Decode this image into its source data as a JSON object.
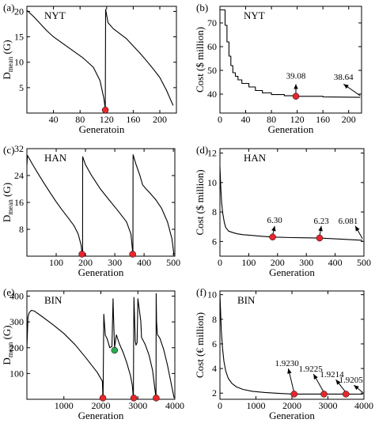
{
  "colors": {
    "marker_red": "#e8262c",
    "marker_green": "#2fa84f",
    "line": "#000000",
    "background": "#ffffff"
  },
  "chart_data": [
    {
      "id": "a",
      "panel_label": "(a)",
      "tag": "NYT",
      "type": "line",
      "xlabel": "Generatoin",
      "ylabel_main": "D",
      "ylabel_sub": "mean",
      "ylabel_unit": " (G)",
      "xlim": [
        0,
        225
      ],
      "ylim": [
        0,
        21
      ],
      "xticks": [
        40,
        80,
        120,
        160,
        200
      ],
      "yticks": [
        0,
        5,
        10,
        15,
        20
      ],
      "ytick_labels_shown": [
        5,
        10,
        15,
        20
      ],
      "series": [
        {
          "x": [
            0,
            10,
            20,
            30,
            40,
            55,
            70,
            85,
            100,
            110,
            116,
            118,
            118.5,
            122,
            130,
            140,
            150,
            160,
            170,
            180,
            190,
            200,
            210,
            220
          ],
          "y": [
            20.2,
            19,
            17.6,
            16.2,
            15,
            13.6,
            12.2,
            10.8,
            9.0,
            6.4,
            2.8,
            0.8,
            20.4,
            17.8,
            16.6,
            15.6,
            14.6,
            13.2,
            11.8,
            10.3,
            8.7,
            7,
            4.5,
            1.5
          ]
        }
      ],
      "markers": [
        {
          "x": 118,
          "y": 0.6,
          "color": "red"
        }
      ],
      "annotations": []
    },
    {
      "id": "b",
      "panel_label": "(b)",
      "tag": "NYT",
      "type": "line",
      "xlabel": "Generation",
      "ylabel": "Cost ($ million)",
      "xlim": [
        0,
        220
      ],
      "ylim": [
        32,
        77
      ],
      "xticks": [
        0,
        40,
        80,
        120,
        160,
        200
      ],
      "yticks": [
        40,
        50,
        60,
        70
      ],
      "series": [
        {
          "x": [
            0,
            8,
            8,
            11,
            11,
            14,
            14,
            17,
            17,
            20,
            20,
            24,
            24,
            28,
            28,
            34,
            34,
            45,
            45,
            55,
            55,
            66,
            66,
            80,
            80,
            100,
            100,
            118,
            118,
            160,
            160,
            218
          ],
          "y": [
            75.5,
            75.5,
            69,
            69,
            62,
            62,
            56,
            56,
            52,
            52,
            49,
            49,
            47.5,
            47.5,
            46,
            46,
            44.5,
            44.5,
            43,
            43,
            41.5,
            41.5,
            40.5,
            40.5,
            39.8,
            39.8,
            39.3,
            39.3,
            39.08,
            39.08,
            38.8,
            38.64
          ]
        }
      ],
      "markers": [
        {
          "x": 118,
          "y": 39.08,
          "color": "red"
        }
      ],
      "annotations": [
        {
          "text": "39.08",
          "x": 118,
          "y": 39.08,
          "tx": 118,
          "ty": 46.5,
          "ax": 118,
          "ay": 44.2
        },
        {
          "text": "38.64",
          "x": 218,
          "y": 38.64,
          "tx": 192,
          "ty": 46,
          "ax": 192,
          "ay": 44.2
        }
      ]
    },
    {
      "id": "c",
      "panel_label": "(c)",
      "tag": "HAN",
      "type": "line",
      "xlabel": "Generation",
      "ylabel_main": "D",
      "ylabel_sub": "mean",
      "ylabel_unit": " (G)",
      "xlim": [
        0,
        505
      ],
      "ylim": [
        0,
        32
      ],
      "xticks": [
        100,
        200,
        300,
        400,
        500
      ],
      "yticks": [
        8,
        16,
        24,
        32
      ],
      "series": [
        {
          "x": [
            0,
            2,
            20,
            40,
            60,
            80,
            100,
            120,
            140,
            160,
            175,
            185,
            188,
            190,
            190.5,
            200,
            220,
            250,
            280,
            310,
            340,
            355,
            360,
            362,
            362.5,
            372,
            385,
            395,
            405,
            420,
            440,
            460,
            480,
            495,
            502
          ],
          "y": [
            27,
            30,
            27.2,
            24.3,
            21.5,
            18.8,
            16.2,
            13.8,
            11.5,
            9.2,
            6.6,
            3.3,
            1.2,
            0.5,
            29.6,
            27.2,
            24.1,
            20.1,
            16.8,
            13.6,
            10.2,
            6.6,
            2.2,
            0.6,
            30.2,
            27.4,
            24.2,
            21.2,
            20.2,
            18.8,
            16.8,
            14.2,
            10.2,
            5.2,
            0.4
          ]
        }
      ],
      "markers": [
        {
          "x": 188,
          "y": 0.6,
          "color": "red"
        },
        {
          "x": 361,
          "y": 0.6,
          "color": "red"
        }
      ],
      "annotations": []
    },
    {
      "id": "d",
      "panel_label": "(d)",
      "tag": "HAN",
      "type": "line",
      "xlabel": "Generation",
      "ylabel": "Cost ($ million)",
      "xlim": [
        0,
        500
      ],
      "ylim": [
        5.0,
        12.3
      ],
      "xticks": [
        0,
        100,
        200,
        300,
        400,
        500
      ],
      "yticks": [
        6,
        8,
        10,
        12
      ],
      "series": [
        {
          "x": [
            0,
            3,
            6,
            10,
            15,
            20,
            30,
            45,
            60,
            80,
            110,
            140,
            183,
            250,
            346,
            420,
            495
          ],
          "y": [
            11.1,
            9.6,
            8.6,
            7.9,
            7.3,
            6.95,
            6.7,
            6.6,
            6.52,
            6.46,
            6.41,
            6.36,
            6.3,
            6.26,
            6.23,
            6.16,
            6.081
          ]
        }
      ],
      "markers": [
        {
          "x": 183,
          "y": 6.3,
          "color": "red"
        },
        {
          "x": 346,
          "y": 6.23,
          "color": "red"
        }
      ],
      "annotations": [
        {
          "text": "6.30",
          "x": 183,
          "y": 6.3,
          "tx": 190,
          "ty": 7.25,
          "ax": 190,
          "ay": 7.05
        },
        {
          "text": "6.23",
          "x": 346,
          "y": 6.23,
          "tx": 352,
          "ty": 7.2,
          "ax": 352,
          "ay": 7.05
        },
        {
          "text": "6.081",
          "x": 495,
          "y": 6.081,
          "tx": 445,
          "ty": 7.2,
          "ax": 470,
          "ay": 7.05
        }
      ]
    },
    {
      "id": "e",
      "panel_label": "(e)",
      "tag": "BIN",
      "type": "line",
      "xlabel": "Generation",
      "ylabel_main": "D",
      "ylabel_sub": "mean",
      "ylabel_unit": " (G)",
      "xlim": [
        0,
        4000
      ],
      "ylim": [
        0,
        420
      ],
      "xticks": [
        1000,
        2000,
        3000,
        4000
      ],
      "yticks": [
        100,
        200,
        300,
        400
      ],
      "series": [
        {
          "x": [
            0,
            30,
            60,
            120,
            200,
            400,
            700,
            1000,
            1300,
            1600,
            1900,
            2040,
            2055,
            2060,
            2080,
            2120,
            2160,
            2200,
            2240,
            2300,
            2330,
            2340,
            2370,
            2420,
            2500,
            2600,
            2700,
            2800,
            2850,
            2880,
            2885,
            2895,
            2930,
            2950,
            2980,
            3000,
            3080,
            3100,
            3200,
            3300,
            3400,
            3450,
            3490,
            3495,
            3505,
            3530,
            3560,
            3600,
            3700,
            3800,
            3900,
            3980
          ],
          "y": [
            200,
            320,
            335,
            345,
            342,
            322,
            290,
            255,
            212,
            160,
            105,
            70,
            5,
            10,
            330,
            248,
            238,
            220,
            200,
            205,
            390,
            330,
            200,
            250,
            215,
            182,
            142,
            92,
            55,
            5,
            200,
            395,
            225,
            210,
            220,
            390,
            302,
            240,
            212,
            172,
            112,
            52,
            5,
            410,
            302,
            250,
            245,
            235,
            192,
            132,
            62,
            5
          ]
        }
      ],
      "markers": [
        {
          "x": 2055,
          "y": 5,
          "color": "red"
        },
        {
          "x": 2370,
          "y": 190,
          "color": "green"
        },
        {
          "x": 2890,
          "y": 5,
          "color": "red"
        },
        {
          "x": 3495,
          "y": 5,
          "color": "red"
        }
      ],
      "annotations": []
    },
    {
      "id": "f",
      "panel_label": "(f)",
      "tag": "BIN",
      "type": "line",
      "xlabel": "Generation",
      "ylabel": "Cost (€ million)",
      "xlim": [
        0,
        4000
      ],
      "ylim": [
        1.5,
        10.3
      ],
      "xticks": [
        0,
        1000,
        2000,
        3000,
        4000
      ],
      "yticks": [
        2,
        4,
        6,
        8,
        10
      ],
      "series": [
        {
          "x": [
            0,
            20,
            40,
            70,
            110,
            160,
            230,
            330,
            460,
            640,
            900,
            1250,
            1700,
            2060,
            2500,
            2890,
            3200,
            3500,
            3970
          ],
          "y": [
            10,
            8.5,
            7,
            5.7,
            4.6,
            3.8,
            3.2,
            2.8,
            2.5,
            2.3,
            2.15,
            2.05,
            1.97,
            1.923,
            1.922,
            1.9225,
            1.921,
            1.9214,
            1.9205
          ]
        }
      ],
      "markers": [
        {
          "x": 2060,
          "y": 1.923,
          "color": "red"
        },
        {
          "x": 2890,
          "y": 1.9225,
          "color": "red"
        },
        {
          "x": 3500,
          "y": 1.9214,
          "color": "red"
        }
      ],
      "annotations": [
        {
          "text": "1.9230",
          "x": 2060,
          "y": 1.923,
          "tx": 1860,
          "ty": 4.2,
          "ax": 1900,
          "ay": 4.0
        },
        {
          "text": "1.9225",
          "x": 2890,
          "y": 1.9225,
          "tx": 2520,
          "ty": 3.75,
          "ax": 2600,
          "ay": 3.55
        },
        {
          "text": "1.9214",
          "x": 3500,
          "y": 1.9214,
          "tx": 3110,
          "ty": 3.3,
          "ax": 3220,
          "ay": 3.1
        },
        {
          "text": "1.9205",
          "x": 3970,
          "y": 1.9205,
          "tx": 3640,
          "ty": 2.85,
          "ax": 3720,
          "ay": 2.65
        }
      ]
    }
  ]
}
